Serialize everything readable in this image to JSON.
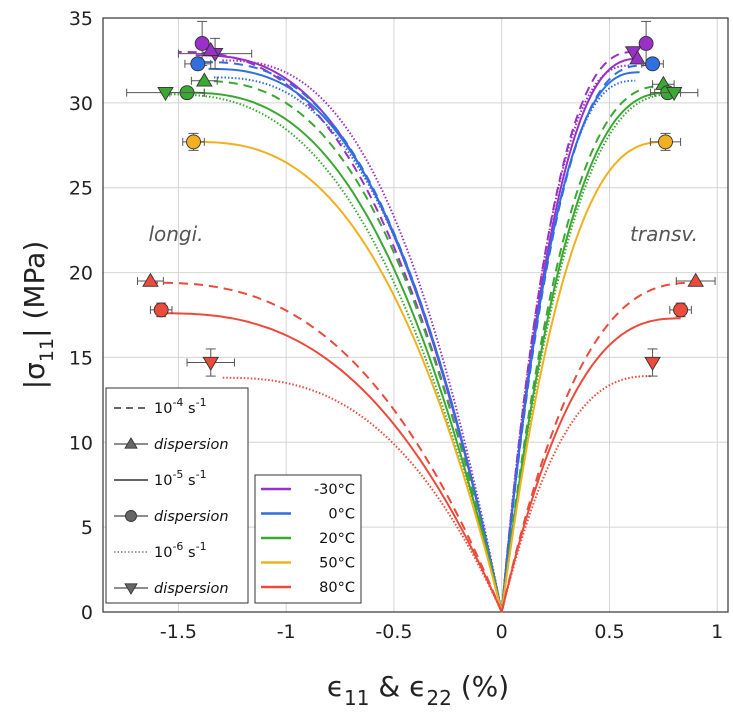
{
  "chart_data": {
    "type": "line",
    "xlabel": "ε11 & ε22 (%)",
    "ylabel": "|σ11| (MPa)",
    "xlim": [
      -1.85,
      1.05
    ],
    "ylim": [
      0,
      35
    ],
    "xticks": [
      -1.5,
      -1,
      -0.5,
      0,
      0.5,
      1
    ],
    "xtick_labels": [
      "-1.5",
      "-1",
      "-0.5",
      "0",
      "0.5",
      "1"
    ],
    "yticks": [
      0,
      5,
      10,
      15,
      20,
      25,
      30,
      35
    ],
    "ytick_labels": [
      "0",
      "5",
      "10",
      "15",
      "20",
      "25",
      "30",
      "35"
    ],
    "grid": true,
    "annotations": [
      {
        "text": "longi.",
        "x": -1.45,
        "y": 21.6
      },
      {
        "text": "transv.",
        "x": 0.88,
        "y": 21.6
      }
    ],
    "legend_rates": [
      {
        "label": "10^-4 s^-1",
        "line": "dashed"
      },
      {
        "label": "dispersion",
        "marker": "triangle-up"
      },
      {
        "label": "10^-5 s^-1",
        "line": "solid"
      },
      {
        "label": "dispersion",
        "marker": "circle"
      },
      {
        "label": "10^-6 s^-1",
        "line": "dotted"
      },
      {
        "label": "dispersion",
        "marker": "triangle-down"
      }
    ],
    "legend_temps": [
      {
        "label": "-30°C",
        "color": "#9b30c8"
      },
      {
        "label": "0°C",
        "color": "#2f6fe0"
      },
      {
        "label": "20°C",
        "color": "#3aa832"
      },
      {
        "label": "50°C",
        "color": "#f0b020"
      },
      {
        "label": "80°C",
        "color": "#ec4a3a"
      }
    ],
    "series": [
      {
        "temp": "-30°C",
        "rate": "10^-4",
        "style": "dashed",
        "color": "#9b30c8",
        "longi_end": [
          -1.5,
          33.0
        ],
        "transv_end": [
          0.62,
          33.0
        ],
        "scale": 1.0
      },
      {
        "temp": "-30°C",
        "rate": "10^-5",
        "style": "solid",
        "color": "#9b30c8",
        "longi_end": [
          -1.42,
          32.8
        ],
        "transv_end": [
          0.64,
          32.6
        ],
        "scale": 1.0
      },
      {
        "temp": "-30°C",
        "rate": "10^-6",
        "style": "dotted",
        "color": "#9b30c8",
        "longi_end": [
          -1.3,
          32.5
        ],
        "transv_end": [
          0.6,
          32.2
        ],
        "scale": 1.0
      },
      {
        "temp": "0°C",
        "rate": "10^-4",
        "style": "dashed",
        "color": "#2f6fe0",
        "longi_end": [
          -1.38,
          32.4
        ],
        "transv_end": [
          0.66,
          32.2
        ],
        "scale": 1.0
      },
      {
        "temp": "0°C",
        "rate": "10^-5",
        "style": "solid",
        "color": "#2f6fe0",
        "longi_end": [
          -1.36,
          32.0
        ],
        "transv_end": [
          0.64,
          31.8
        ],
        "scale": 1.0
      },
      {
        "temp": "0°C",
        "rate": "10^-6",
        "style": "dotted",
        "color": "#2f6fe0",
        "longi_end": [
          -1.34,
          31.5
        ],
        "transv_end": [
          0.62,
          31.3
        ],
        "scale": 1.0
      },
      {
        "temp": "20°C",
        "rate": "10^-4",
        "style": "dashed",
        "color": "#3aa832",
        "longi_end": [
          -1.42,
          31.3
        ],
        "transv_end": [
          0.76,
          31.0
        ],
        "scale": 1.1
      },
      {
        "temp": "20°C",
        "rate": "10^-5",
        "style": "solid",
        "color": "#3aa832",
        "longi_end": [
          -1.47,
          30.6
        ],
        "transv_end": [
          0.78,
          30.6
        ],
        "scale": 1.0
      },
      {
        "temp": "20°C",
        "rate": "10^-6",
        "style": "dotted",
        "color": "#3aa832",
        "longi_end": [
          -1.55,
          30.5
        ],
        "transv_end": [
          0.8,
          30.5
        ],
        "scale": 1.0
      },
      {
        "temp": "50°C",
        "rate": "10^-5",
        "style": "solid",
        "color": "#f0b020",
        "longi_end": [
          -1.43,
          27.7
        ],
        "transv_end": [
          0.76,
          27.7
        ],
        "scale": 1.0
      },
      {
        "temp": "80°C",
        "rate": "10^-4",
        "style": "dashed",
        "color": "#ec4a3a",
        "longi_end": [
          -1.63,
          19.4
        ],
        "transv_end": [
          0.9,
          19.4
        ],
        "scale": 1.0
      },
      {
        "temp": "80°C",
        "rate": "10^-5",
        "style": "solid",
        "color": "#ec4a3a",
        "longi_end": [
          -1.58,
          17.6
        ],
        "transv_end": [
          0.83,
          17.3
        ],
        "scale": 1.0
      },
      {
        "temp": "80°C",
        "rate": "10^-6",
        "style": "dotted",
        "color": "#ec4a3a",
        "longi_end": [
          -1.3,
          13.8
        ],
        "transv_end": [
          0.7,
          13.9
        ],
        "scale": 1.0
      }
    ],
    "points": [
      {
        "temp": "-30°C",
        "color": "#9b30c8",
        "marker": "circle",
        "x": -1.39,
        "y": 33.5,
        "xerr": 0.0,
        "yerr": 1.3
      },
      {
        "temp": "-30°C",
        "color": "#9b30c8",
        "marker": "triangle-down",
        "x": -1.33,
        "y": 32.9,
        "xerr": 0.17,
        "yerr": 0.9
      },
      {
        "temp": "-30°C",
        "color": "#9b30c8",
        "marker": "triangle-up",
        "x": -1.35,
        "y": 33.1,
        "xerr": 0.0,
        "yerr": 0.0
      },
      {
        "temp": "0°C",
        "color": "#2f6fe0",
        "marker": "circle",
        "x": -1.41,
        "y": 32.3,
        "xerr": 0.06,
        "yerr": 0.0
      },
      {
        "temp": "20°C",
        "color": "#3aa832",
        "marker": "triangle-up",
        "x": -1.38,
        "y": 31.3,
        "xerr": 0.06,
        "yerr": 0.0
      },
      {
        "temp": "20°C",
        "color": "#3aa832",
        "marker": "circle",
        "x": -1.46,
        "y": 30.6,
        "xerr": 0.08,
        "yerr": 0.0
      },
      {
        "temp": "20°C",
        "color": "#3aa832",
        "marker": "triangle-down",
        "x": -1.56,
        "y": 30.6,
        "xerr": 0.18,
        "yerr": 0.0
      },
      {
        "temp": "50°C",
        "color": "#f0b020",
        "marker": "circle",
        "x": -1.43,
        "y": 27.7,
        "xerr": 0.05,
        "yerr": 0.5
      },
      {
        "temp": "80°C",
        "color": "#ec4a3a",
        "marker": "triangle-up",
        "x": -1.63,
        "y": 19.5,
        "xerr": 0.06,
        "yerr": 0.0
      },
      {
        "temp": "80°C",
        "color": "#ec4a3a",
        "marker": "circle",
        "x": -1.58,
        "y": 17.8,
        "xerr": 0.05,
        "yerr": 0.4
      },
      {
        "temp": "80°C",
        "color": "#ec4a3a",
        "marker": "triangle-down",
        "x": -1.35,
        "y": 14.7,
        "xerr": 0.11,
        "yerr": 0.8
      },
      {
        "temp": "-30°C",
        "color": "#9b30c8",
        "marker": "circle",
        "x": 0.67,
        "y": 33.5,
        "xerr": 0.0,
        "yerr": 1.3
      },
      {
        "temp": "-30°C",
        "color": "#9b30c8",
        "marker": "triangle-down",
        "x": 0.61,
        "y": 33.0,
        "xerr": 0.0,
        "yerr": 0.0
      },
      {
        "temp": "-30°C",
        "color": "#9b30c8",
        "marker": "triangle-up",
        "x": 0.63,
        "y": 32.6,
        "xerr": 0.0,
        "yerr": 0.0
      },
      {
        "temp": "0°C",
        "color": "#2f6fe0",
        "marker": "circle",
        "x": 0.7,
        "y": 32.3,
        "xerr": 0.05,
        "yerr": 0.0
      },
      {
        "temp": "20°C",
        "color": "#3aa832",
        "marker": "triangle-up",
        "x": 0.75,
        "y": 31.1,
        "xerr": 0.05,
        "yerr": 0.0
      },
      {
        "temp": "20°C",
        "color": "#3aa832",
        "marker": "circle",
        "x": 0.77,
        "y": 30.6,
        "xerr": 0.06,
        "yerr": 0.0
      },
      {
        "temp": "20°C",
        "color": "#3aa832",
        "marker": "triangle-down",
        "x": 0.8,
        "y": 30.6,
        "xerr": 0.11,
        "yerr": 0.0
      },
      {
        "temp": "50°C",
        "color": "#f0b020",
        "marker": "circle",
        "x": 0.76,
        "y": 27.7,
        "xerr": 0.07,
        "yerr": 0.5
      },
      {
        "temp": "80°C",
        "color": "#ec4a3a",
        "marker": "triangle-up",
        "x": 0.9,
        "y": 19.5,
        "xerr": 0.09,
        "yerr": 0.0
      },
      {
        "temp": "80°C",
        "color": "#ec4a3a",
        "marker": "circle",
        "x": 0.83,
        "y": 17.8,
        "xerr": 0.05,
        "yerr": 0.4
      },
      {
        "temp": "80°C",
        "color": "#ec4a3a",
        "marker": "triangle-down",
        "x": 0.7,
        "y": 14.7,
        "xerr": 0.0,
        "yerr": 0.8
      }
    ]
  }
}
